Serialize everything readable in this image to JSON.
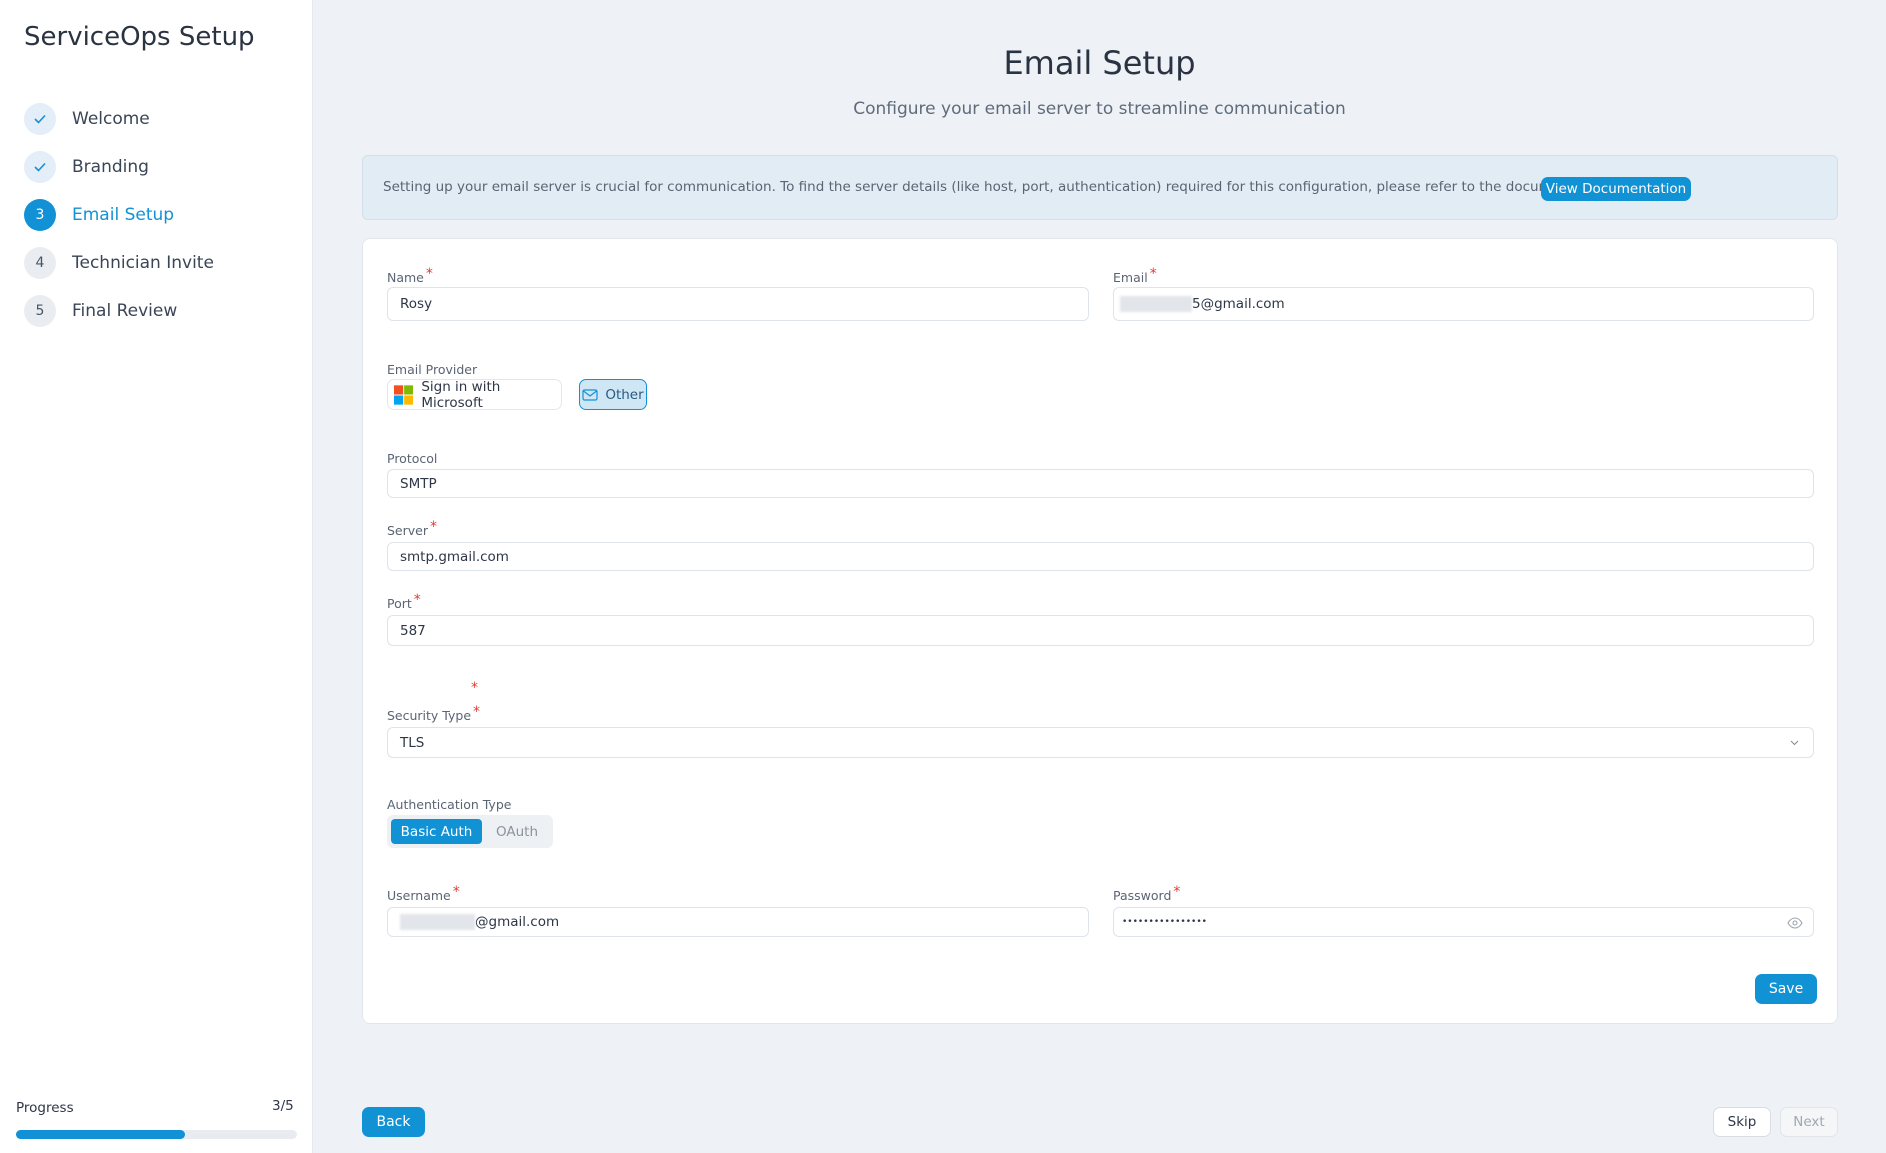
{
  "sidebar": {
    "title": "ServiceOps Setup",
    "steps": [
      {
        "label": "Welcome"
      },
      {
        "label": "Branding"
      },
      {
        "number": "3",
        "label": "Email Setup"
      },
      {
        "number": "4",
        "label": "Technician Invite"
      },
      {
        "number": "5",
        "label": "Final Review"
      }
    ],
    "progress": {
      "label": "Progress",
      "count": "3/5",
      "completed": 3,
      "total": 5
    }
  },
  "header": {
    "title": "Email Setup",
    "subtitle": "Configure your email server to streamline communication"
  },
  "info": {
    "text": "Setting up your email server is crucial for communication. To find the server details (like host, port, authentication) required for this configuration, please refer to the documentation.",
    "button": "View Documentation"
  },
  "form": {
    "name": {
      "label": "Name",
      "value": "Rosy"
    },
    "email": {
      "label": "Email",
      "value": "5@gmail.com"
    },
    "provider": {
      "label": "Email Provider",
      "options": [
        "Sign in with Microsoft",
        "Other"
      ]
    },
    "protocol": {
      "label": "Protocol",
      "value": "SMTP"
    },
    "server": {
      "label": "Server",
      "value": "smtp.gmail.com"
    },
    "port": {
      "label": "Port",
      "value": "587"
    },
    "security": {
      "label": "Security Type",
      "value": "TLS"
    },
    "auth": {
      "label": "Authentication Type",
      "options": [
        "Basic Auth",
        "OAuth"
      ]
    },
    "username": {
      "label": "Username",
      "value": "@gmail.com"
    },
    "password": {
      "label": "Password",
      "value": "••••••••••••••••"
    },
    "save": "Save"
  },
  "footer": {
    "back": "Back",
    "skip": "Skip",
    "next": "Next"
  }
}
